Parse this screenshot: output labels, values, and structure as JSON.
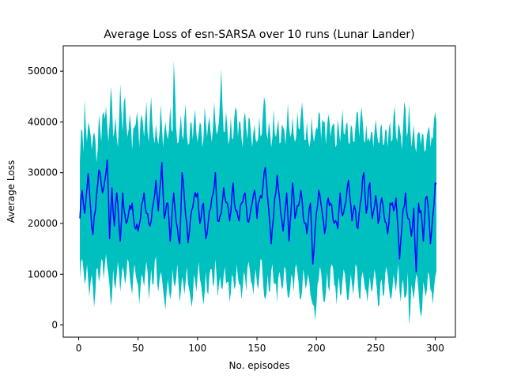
{
  "chart_data": {
    "type": "line",
    "title": "Average Loss of esn-SARSA over 10 runs (Lunar Lander)",
    "xlabel": "No. episodes",
    "ylabel": "Average Loss",
    "xlim": [
      -13,
      317
    ],
    "ylim": [
      -2400,
      55000
    ],
    "x_ticks": [
      0,
      50,
      100,
      150,
      200,
      250,
      300
    ],
    "y_ticks": [
      0,
      10000,
      20000,
      30000,
      40000,
      50000
    ],
    "x_tick_labels": [
      "0",
      "50",
      "100",
      "150",
      "200",
      "250",
      "300"
    ],
    "y_tick_labels": [
      "0",
      "10000",
      "20000",
      "30000",
      "40000",
      "50000"
    ],
    "grid": false,
    "legend": "none",
    "episodes": {
      "start": 1,
      "end": 301
    },
    "mean_points": [
      [
        1,
        21000
      ],
      [
        3,
        26500
      ],
      [
        5,
        22000
      ],
      [
        8,
        29800
      ],
      [
        10,
        23000
      ],
      [
        12,
        17800
      ],
      [
        15,
        25500
      ],
      [
        17,
        30500
      ],
      [
        20,
        26000
      ],
      [
        22,
        28500
      ],
      [
        24,
        32500
      ],
      [
        26,
        17000
      ],
      [
        28,
        27000
      ],
      [
        30,
        19500
      ],
      [
        32,
        26000
      ],
      [
        35,
        16500
      ],
      [
        37,
        26000
      ],
      [
        40,
        20000
      ],
      [
        42,
        22000
      ],
      [
        45,
        24000
      ],
      [
        47,
        19500
      ],
      [
        50,
        18500
      ],
      [
        52,
        21000
      ],
      [
        55,
        26000
      ],
      [
        57,
        22000
      ],
      [
        60,
        19500
      ],
      [
        62,
        23000
      ],
      [
        65,
        28500
      ],
      [
        67,
        22500
      ],
      [
        70,
        32000
      ],
      [
        72,
        21000
      ],
      [
        75,
        24000
      ],
      [
        77,
        16500
      ],
      [
        80,
        26000
      ],
      [
        82,
        20500
      ],
      [
        85,
        16000
      ],
      [
        87,
        30000
      ],
      [
        90,
        21500
      ],
      [
        92,
        16200
      ],
      [
        95,
        22500
      ],
      [
        97,
        25000
      ],
      [
        100,
        26000
      ],
      [
        102,
        20000
      ],
      [
        105,
        24000
      ],
      [
        107,
        17000
      ],
      [
        110,
        22500
      ],
      [
        112,
        25000
      ],
      [
        115,
        30000
      ],
      [
        117,
        20500
      ],
      [
        120,
        22000
      ],
      [
        122,
        27000
      ],
      [
        125,
        24000
      ],
      [
        127,
        20500
      ],
      [
        130,
        28000
      ],
      [
        132,
        22500
      ],
      [
        135,
        20500
      ],
      [
        137,
        24000
      ],
      [
        140,
        26000
      ],
      [
        142,
        20500
      ],
      [
        145,
        23000
      ],
      [
        148,
        26500
      ],
      [
        150,
        21000
      ],
      [
        152,
        24500
      ],
      [
        155,
        27000
      ],
      [
        157,
        31000
      ],
      [
        160,
        22500
      ],
      [
        162,
        16000
      ],
      [
        165,
        25000
      ],
      [
        167,
        29500
      ],
      [
        170,
        22000
      ],
      [
        172,
        18500
      ],
      [
        175,
        26000
      ],
      [
        177,
        16500
      ],
      [
        180,
        28000
      ],
      [
        182,
        21000
      ],
      [
        185,
        23500
      ],
      [
        187,
        26500
      ],
      [
        190,
        20000
      ],
      [
        192,
        18000
      ],
      [
        195,
        24000
      ],
      [
        197,
        12000
      ],
      [
        200,
        22000
      ],
      [
        202,
        26500
      ],
      [
        205,
        22000
      ],
      [
        207,
        18000
      ],
      [
        210,
        25000
      ],
      [
        212,
        24000
      ],
      [
        215,
        20000
      ],
      [
        218,
        19000
      ],
      [
        220,
        26000
      ],
      [
        222,
        21500
      ],
      [
        225,
        24500
      ],
      [
        227,
        28500
      ],
      [
        230,
        20500
      ],
      [
        232,
        23500
      ],
      [
        235,
        19000
      ],
      [
        237,
        24000
      ],
      [
        240,
        30000
      ],
      [
        242,
        22000
      ],
      [
        245,
        28000
      ],
      [
        247,
        21000
      ],
      [
        250,
        25500
      ],
      [
        252,
        20000
      ],
      [
        255,
        25000
      ],
      [
        257,
        21500
      ],
      [
        260,
        18000
      ],
      [
        262,
        24000
      ],
      [
        265,
        22500
      ],
      [
        267,
        25000
      ],
      [
        270,
        13000
      ],
      [
        272,
        19500
      ],
      [
        275,
        26000
      ],
      [
        277,
        21000
      ],
      [
        280,
        17500
      ],
      [
        282,
        23000
      ],
      [
        284,
        10500
      ],
      [
        286,
        24000
      ],
      [
        288,
        22500
      ],
      [
        290,
        16500
      ],
      [
        292,
        25000
      ],
      [
        294,
        23500
      ],
      [
        296,
        16000
      ],
      [
        298,
        21500
      ],
      [
        300,
        28000
      ]
    ],
    "band_upper_points": [
      [
        1,
        32000
      ],
      [
        2,
        38500
      ],
      [
        4,
        34000
      ],
      [
        5,
        44500
      ],
      [
        7,
        36000
      ],
      [
        9,
        39000
      ],
      [
        11,
        34500
      ],
      [
        13,
        38000
      ],
      [
        15,
        32000
      ],
      [
        17,
        41500
      ],
      [
        19,
        36000
      ],
      [
        21,
        42000
      ],
      [
        23,
        43000
      ],
      [
        25,
        36000
      ],
      [
        27,
        47000
      ],
      [
        29,
        37000
      ],
      [
        31,
        41000
      ],
      [
        33,
        35000
      ],
      [
        35,
        47500
      ],
      [
        37,
        38000
      ],
      [
        39,
        45000
      ],
      [
        41,
        37000
      ],
      [
        43,
        41500
      ],
      [
        45,
        34500
      ],
      [
        47,
        39000
      ],
      [
        49,
        42000
      ],
      [
        51,
        35000
      ],
      [
        53,
        41500
      ],
      [
        55,
        37000
      ],
      [
        57,
        44000
      ],
      [
        59,
        36000
      ],
      [
        61,
        45000
      ],
      [
        63,
        37000
      ],
      [
        65,
        39500
      ],
      [
        67,
        35500
      ],
      [
        69,
        43500
      ],
      [
        71,
        35000
      ],
      [
        73,
        40000
      ],
      [
        75,
        36500
      ],
      [
        77,
        43000
      ],
      [
        79,
        38000
      ],
      [
        80,
        52000
      ],
      [
        82,
        39000
      ],
      [
        84,
        36000
      ],
      [
        86,
        41500
      ],
      [
        88,
        36500
      ],
      [
        90,
        43500
      ],
      [
        92,
        35500
      ],
      [
        94,
        40000
      ],
      [
        96,
        36500
      ],
      [
        98,
        42500
      ],
      [
        100,
        36000
      ],
      [
        102,
        40000
      ],
      [
        104,
        35000
      ],
      [
        106,
        43000
      ],
      [
        108,
        37000
      ],
      [
        110,
        41000
      ],
      [
        112,
        36000
      ],
      [
        114,
        44000
      ],
      [
        116,
        37500
      ],
      [
        118,
        40000
      ],
      [
        120,
        50500
      ],
      [
        122,
        38000
      ],
      [
        124,
        42000
      ],
      [
        126,
        35500
      ],
      [
        128,
        41000
      ],
      [
        130,
        36500
      ],
      [
        132,
        43000
      ],
      [
        134,
        37000
      ],
      [
        136,
        40000
      ],
      [
        138,
        35000
      ],
      [
        140,
        42000
      ],
      [
        142,
        36500
      ],
      [
        144,
        40500
      ],
      [
        146,
        35000
      ],
      [
        148,
        39500
      ],
      [
        150,
        36000
      ],
      [
        152,
        41000
      ],
      [
        154,
        37500
      ],
      [
        156,
        45000
      ],
      [
        158,
        38000
      ],
      [
        160,
        40000
      ],
      [
        162,
        35000
      ],
      [
        164,
        42500
      ],
      [
        166,
        37000
      ],
      [
        168,
        40500
      ],
      [
        170,
        36000
      ],
      [
        172,
        39000
      ],
      [
        174,
        35500
      ],
      [
        176,
        43500
      ],
      [
        178,
        37000
      ],
      [
        180,
        41000
      ],
      [
        182,
        36000
      ],
      [
        184,
        42000
      ],
      [
        186,
        38500
      ],
      [
        188,
        44000
      ],
      [
        190,
        36500
      ],
      [
        192,
        40000
      ],
      [
        194,
        35000
      ],
      [
        196,
        41000
      ],
      [
        198,
        36000
      ],
      [
        200,
        39000
      ],
      [
        202,
        42000
      ],
      [
        204,
        36500
      ],
      [
        206,
        40000
      ],
      [
        208,
        35500
      ],
      [
        210,
        41500
      ],
      [
        212,
        37000
      ],
      [
        214,
        39500
      ],
      [
        216,
        35000
      ],
      [
        218,
        40500
      ],
      [
        220,
        36000
      ],
      [
        222,
        42500
      ],
      [
        224,
        37500
      ],
      [
        226,
        40000
      ],
      [
        228,
        35500
      ],
      [
        230,
        39000
      ],
      [
        232,
        36000
      ],
      [
        234,
        42000
      ],
      [
        236,
        37000
      ],
      [
        238,
        43000
      ],
      [
        240,
        36500
      ],
      [
        242,
        39500
      ],
      [
        244,
        37000
      ],
      [
        246,
        38000
      ],
      [
        248,
        35000
      ],
      [
        250,
        40500
      ],
      [
        252,
        36000
      ],
      [
        254,
        39000
      ],
      [
        256,
        35500
      ],
      [
        258,
        38500
      ],
      [
        260,
        35000
      ],
      [
        262,
        40000
      ],
      [
        264,
        36500
      ],
      [
        266,
        43000
      ],
      [
        268,
        36000
      ],
      [
        270,
        39000
      ],
      [
        272,
        34500
      ],
      [
        274,
        44000
      ],
      [
        276,
        37000
      ],
      [
        278,
        43500
      ],
      [
        280,
        35000
      ],
      [
        282,
        39500
      ],
      [
        284,
        34000
      ],
      [
        286,
        38000
      ],
      [
        288,
        35500
      ],
      [
        290,
        37500
      ],
      [
        292,
        34500
      ],
      [
        294,
        38500
      ],
      [
        296,
        35000
      ],
      [
        298,
        36500
      ],
      [
        300,
        42000
      ],
      [
        301,
        40000
      ]
    ],
    "band_lower_points": [
      [
        1,
        9000
      ],
      [
        3,
        13000
      ],
      [
        5,
        8000
      ],
      [
        7,
        12000
      ],
      [
        9,
        5500
      ],
      [
        11,
        10000
      ],
      [
        13,
        3500
      ],
      [
        15,
        11000
      ],
      [
        17,
        8500
      ],
      [
        19,
        13000
      ],
      [
        21,
        9000
      ],
      [
        23,
        14000
      ],
      [
        25,
        10000
      ],
      [
        27,
        3800
      ],
      [
        29,
        11000
      ],
      [
        31,
        7000
      ],
      [
        33,
        12500
      ],
      [
        35,
        6500
      ],
      [
        37,
        11500
      ],
      [
        39,
        8000
      ],
      [
        41,
        13000
      ],
      [
        43,
        9500
      ],
      [
        45,
        6000
      ],
      [
        47,
        12000
      ],
      [
        49,
        8500
      ],
      [
        51,
        4000
      ],
      [
        53,
        10000
      ],
      [
        55,
        7500
      ],
      [
        57,
        12500
      ],
      [
        59,
        5000
      ],
      [
        61,
        11000
      ],
      [
        63,
        8000
      ],
      [
        65,
        13500
      ],
      [
        67,
        6500
      ],
      [
        69,
        10500
      ],
      [
        71,
        7000
      ],
      [
        73,
        3000
      ],
      [
        75,
        9000
      ],
      [
        77,
        5000
      ],
      [
        79,
        11000
      ],
      [
        81,
        7500
      ],
      [
        83,
        12000
      ],
      [
        85,
        4500
      ],
      [
        87,
        9500
      ],
      [
        89,
        6000
      ],
      [
        91,
        11500
      ],
      [
        93,
        7000
      ],
      [
        95,
        3500
      ],
      [
        97,
        10000
      ],
      [
        99,
        6500
      ],
      [
        101,
        12500
      ],
      [
        103,
        8000
      ],
      [
        105,
        4000
      ],
      [
        107,
        10500
      ],
      [
        109,
        6000
      ],
      [
        111,
        11000
      ],
      [
        113,
        7500
      ],
      [
        115,
        13000
      ],
      [
        117,
        5500
      ],
      [
        119,
        9500
      ],
      [
        121,
        7000
      ],
      [
        123,
        11500
      ],
      [
        125,
        8500
      ],
      [
        127,
        4500
      ],
      [
        129,
        10000
      ],
      [
        131,
        7000
      ],
      [
        133,
        12000
      ],
      [
        135,
        8000
      ],
      [
        137,
        5000
      ],
      [
        139,
        10500
      ],
      [
        141,
        6500
      ],
      [
        143,
        12500
      ],
      [
        145,
        8500
      ],
      [
        147,
        6000
      ],
      [
        149,
        11000
      ],
      [
        151,
        7000
      ],
      [
        153,
        13000
      ],
      [
        155,
        9000
      ],
      [
        157,
        5000
      ],
      [
        159,
        10000
      ],
      [
        161,
        6500
      ],
      [
        163,
        12000
      ],
      [
        165,
        8000
      ],
      [
        167,
        4500
      ],
      [
        169,
        10500
      ],
      [
        171,
        7000
      ],
      [
        173,
        11500
      ],
      [
        175,
        8000
      ],
      [
        177,
        5500
      ],
      [
        179,
        10000
      ],
      [
        181,
        6500
      ],
      [
        183,
        12000
      ],
      [
        185,
        8500
      ],
      [
        187,
        5000
      ],
      [
        189,
        11000
      ],
      [
        191,
        7000
      ],
      [
        193,
        10000
      ],
      [
        195,
        6000
      ],
      [
        197,
        4000
      ],
      [
        199,
        800
      ],
      [
        201,
        8000
      ],
      [
        203,
        11500
      ],
      [
        205,
        7000
      ],
      [
        207,
        4500
      ],
      [
        209,
        10500
      ],
      [
        211,
        6500
      ],
      [
        213,
        12000
      ],
      [
        215,
        8000
      ],
      [
        217,
        4000
      ],
      [
        219,
        9500
      ],
      [
        221,
        6000
      ],
      [
        223,
        11000
      ],
      [
        225,
        7500
      ],
      [
        227,
        5000
      ],
      [
        229,
        10000
      ],
      [
        231,
        6000
      ],
      [
        233,
        12000
      ],
      [
        235,
        8000
      ],
      [
        237,
        5000
      ],
      [
        239,
        10500
      ],
      [
        241,
        7000
      ],
      [
        243,
        4500
      ],
      [
        245,
        9500
      ],
      [
        247,
        6500
      ],
      [
        249,
        11000
      ],
      [
        251,
        7000
      ],
      [
        253,
        4000
      ],
      [
        255,
        9000
      ],
      [
        257,
        6000
      ],
      [
        259,
        11500
      ],
      [
        261,
        7500
      ],
      [
        263,
        5000
      ],
      [
        265,
        10000
      ],
      [
        267,
        6500
      ],
      [
        269,
        12000
      ],
      [
        271,
        4500
      ],
      [
        273,
        9000
      ],
      [
        275,
        5500
      ],
      [
        277,
        10500
      ],
      [
        278,
        0
      ],
      [
        280,
        8000
      ],
      [
        282,
        5000
      ],
      [
        284,
        10000
      ],
      [
        286,
        6500
      ],
      [
        288,
        1500
      ],
      [
        290,
        8500
      ],
      [
        292,
        5500
      ],
      [
        294,
        10500
      ],
      [
        296,
        7000
      ],
      [
        298,
        4000
      ],
      [
        300,
        9500
      ],
      [
        301,
        10500
      ]
    ],
    "series": [
      {
        "role": "std-band",
        "color": "#00bfbf"
      },
      {
        "role": "mean",
        "color": "#0000ff"
      }
    ]
  }
}
